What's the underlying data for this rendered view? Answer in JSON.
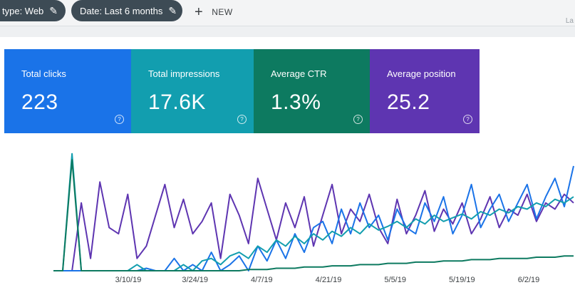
{
  "filters": {
    "type_label": "type: Web",
    "date_label": "Date: Last 6 months",
    "new_label": "NEW",
    "corner": "La"
  },
  "cards": [
    {
      "label": "Total clicks",
      "value": "223",
      "color": "#1a73e8"
    },
    {
      "label": "Total impressions",
      "value": "17.6K",
      "color": "#129eaf"
    },
    {
      "label": "Average CTR",
      "value": "1.3%",
      "color": "#0d7a60"
    },
    {
      "label": "Average position",
      "value": "25.2",
      "color": "#5e35b1"
    }
  ],
  "icons": {
    "help": "?",
    "pencil": "✎",
    "plus": "+"
  },
  "chart_data": {
    "type": "line",
    "x_tick_labels": [
      "3/10/19",
      "3/24/19",
      "4/7/19",
      "4/21/19",
      "5/5/19",
      "5/19/19",
      "6/2/19"
    ],
    "series": [
      {
        "color": "#5e35b1",
        "values": [
          0,
          0,
          0,
          0.55,
          0.1,
          0.72,
          0.35,
          0.3,
          0.62,
          0.1,
          0.2,
          0.45,
          0.7,
          0.35,
          0.58,
          0.3,
          0.4,
          0.55,
          0.1,
          0.62,
          0.45,
          0.22,
          0.75,
          0.5,
          0.25,
          0.55,
          0.35,
          0.6,
          0.2,
          0.45,
          0.7,
          0.3,
          0.5,
          0.4,
          0.62,
          0.35,
          0.22,
          0.58,
          0.3,
          0.45,
          0.65,
          0.32,
          0.5,
          0.38,
          0.55,
          0.3,
          0.42,
          0.6,
          0.35,
          0.5,
          0.45,
          0.62,
          0.4,
          0.55,
          0.5,
          0.62,
          0.55
        ]
      },
      {
        "color": "#1a73e8",
        "values": [
          0,
          0,
          0,
          0,
          0,
          0,
          0,
          0,
          0,
          0,
          0.02,
          0,
          0,
          0.1,
          0,
          0.05,
          0,
          0.15,
          0,
          0.05,
          0.12,
          0,
          0.2,
          0.08,
          0.25,
          0.1,
          0.3,
          0.15,
          0.35,
          0.4,
          0.22,
          0.5,
          0.3,
          0.55,
          0.35,
          0.45,
          0.25,
          0.5,
          0.35,
          0.3,
          0.55,
          0.4,
          0.6,
          0.3,
          0.45,
          0.7,
          0.35,
          0.5,
          0.62,
          0.4,
          0.55,
          0.7,
          0.42,
          0.6,
          0.75,
          0.52,
          0.85
        ]
      },
      {
        "color": "#129eaf",
        "values": [
          0,
          0,
          0.95,
          0,
          0,
          0,
          0,
          0,
          0,
          0.05,
          0,
          0,
          0,
          0,
          0.05,
          0,
          0.08,
          0.1,
          0.05,
          0.12,
          0.15,
          0.1,
          0.2,
          0.15,
          0.25,
          0.2,
          0.28,
          0.22,
          0.3,
          0.25,
          0.32,
          0.28,
          0.35,
          0.3,
          0.38,
          0.33,
          0.36,
          0.4,
          0.35,
          0.42,
          0.38,
          0.45,
          0.4,
          0.43,
          0.46,
          0.42,
          0.48,
          0.45,
          0.5,
          0.47,
          0.52,
          0.5,
          0.55,
          0.52,
          0.58,
          0.55,
          0.6
        ]
      },
      {
        "color": "#0d7a60",
        "values": [
          0,
          0,
          0.9,
          0,
          0,
          0,
          0,
          0,
          0,
          0,
          0,
          0,
          0,
          0,
          0,
          0,
          0,
          0,
          0,
          0,
          0,
          0.01,
          0.01,
          0.01,
          0.02,
          0.02,
          0.02,
          0.03,
          0.03,
          0.03,
          0.04,
          0.04,
          0.04,
          0.05,
          0.05,
          0.05,
          0.06,
          0.06,
          0.06,
          0.07,
          0.07,
          0.07,
          0.08,
          0.08,
          0.08,
          0.09,
          0.09,
          0.09,
          0.1,
          0.1,
          0.1,
          0.1,
          0.11,
          0.11,
          0.11,
          0.12,
          0.12
        ]
      }
    ]
  }
}
